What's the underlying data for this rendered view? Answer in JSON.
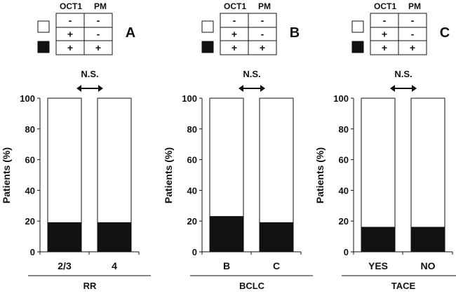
{
  "legend": {
    "headers": [
      "OCT1",
      "PM"
    ],
    "rows": [
      {
        "swatch": "white",
        "cells": [
          "-",
          "-"
        ]
      },
      {
        "swatch": "white",
        "cells": [
          "+",
          "-"
        ]
      },
      {
        "swatch": "black",
        "cells": [
          "+",
          "+"
        ]
      }
    ]
  },
  "colors": {
    "black": "#111111",
    "white": "#ffffff"
  },
  "chart_data": [
    {
      "type": "bar",
      "stacked": true,
      "panel": "A",
      "ylabel": "Patients (%)",
      "xlabel": "RR",
      "ylim": [
        0,
        100
      ],
      "yticks": [
        "0",
        "20",
        "40",
        "60",
        "80",
        "100"
      ],
      "categories": [
        "2/3",
        "4"
      ],
      "black_values": [
        19,
        19
      ],
      "annotation": "N.S."
    },
    {
      "type": "bar",
      "stacked": true,
      "panel": "B",
      "ylabel": "Patients (%)",
      "xlabel": "BCLC",
      "ylim": [
        0,
        100
      ],
      "yticks": [
        "0",
        "20",
        "40",
        "60",
        "80",
        "100"
      ],
      "categories": [
        "B",
        "C"
      ],
      "black_values": [
        23,
        19
      ],
      "annotation": "N.S."
    },
    {
      "type": "bar",
      "stacked": true,
      "panel": "C",
      "ylabel": "Patients (%)",
      "xlabel": "TACE",
      "ylim": [
        0,
        100
      ],
      "yticks": [
        "0",
        "20",
        "40",
        "60",
        "80",
        "100"
      ],
      "categories": [
        "YES",
        "NO"
      ],
      "black_values": [
        16,
        16
      ],
      "annotation": "N.S."
    }
  ]
}
